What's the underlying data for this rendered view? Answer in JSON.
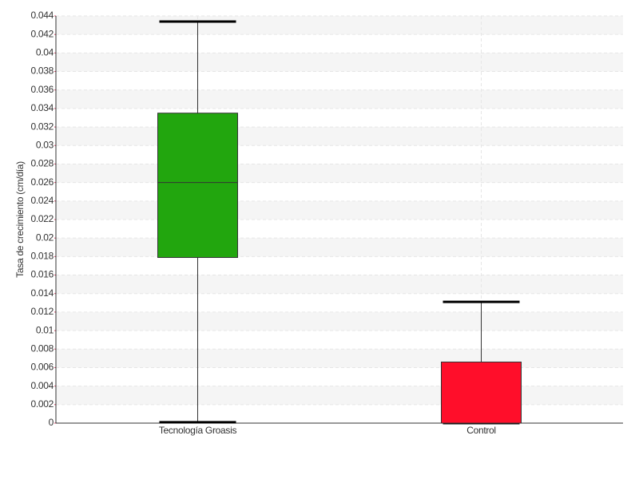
{
  "chart_data": {
    "type": "box",
    "y_label": "Tasa de crecimiento (cm/día)",
    "categories": [
      "Tecnología Groasis",
      "Control"
    ],
    "boxes": [
      {
        "min": 0.0001,
        "q1": 0.0179,
        "median": 0.026,
        "q3": 0.0335,
        "max": 0.0434,
        "color": "#22a60e"
      },
      {
        "min": 0,
        "q1": 0,
        "median": 0,
        "q3": 0.0066,
        "max": 0.0131,
        "color": "#ff0e2a"
      }
    ],
    "ylim": [
      0,
      0.044
    ],
    "yticks": [
      0,
      0.002,
      0.004,
      0.006,
      0.008,
      0.01,
      0.012,
      0.014,
      0.016,
      0.018,
      0.02,
      0.022,
      0.024,
      0.026,
      0.028,
      0.03,
      0.032,
      0.034,
      0.036,
      0.038,
      0.04,
      0.042,
      0.044
    ],
    "grid": true
  }
}
